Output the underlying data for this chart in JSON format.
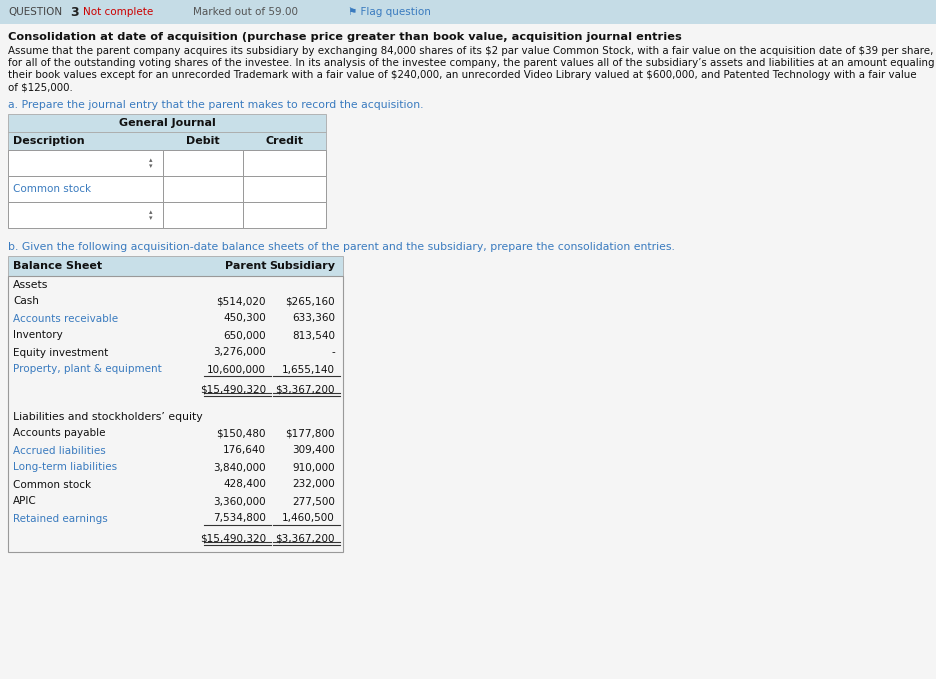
{
  "header_bg": "#cce6ef",
  "page_bg": "#f5f5f5",
  "table_header_bg": "#c8dfe8",
  "question_bar_bg": "#c5dce6",
  "part_a_color": "#3a7bbf",
  "part_b_color": "#3a7bbf",
  "blue_text_color": "#3a7bbf",
  "black_text": "#111111",
  "not_complete_color": "#cc0000",
  "marked_color": "#555555",
  "flag_color": "#3a7bbf",
  "title_text": "Consolidation at date of acquisition (purchase price greater than book value, acquisition journal entries",
  "body_lines": [
    "Assume that the parent company acquires its subsidiary by exchanging 84,000 shares of its $2 par value Common Stock, with a fair value on the acquisition date of $39 per share,",
    "for all of the outstanding voting shares of the investee. In its analysis of the investee company, the parent values all of the subsidiary’s assets and liabilities at an amount equaling",
    "their book values except for an unrecorded Trademark with a fair value of $240,000, an unrecorded Video Library valued at $600,000, and Patented Technology with a fair value",
    "of $125,000."
  ],
  "part_a_text": "a. Prepare the journal entry that the parent makes to record the acquisition.",
  "gj_title": "General Journal",
  "gj_desc": "Description",
  "gj_debit": "Debit",
  "gj_credit": "Credit",
  "common_stock_label": "Common stock",
  "part_b_text": "b. Given the following acquisition-date balance sheets of the parent and the subsidiary, prepare the consolidation entries.",
  "bs_header": [
    "Balance Sheet",
    "Parent",
    "Subsidiary"
  ],
  "assets_label": "Assets",
  "asset_rows": [
    [
      "Cash",
      "$514,020",
      "$265,160"
    ],
    [
      "Accounts receivable",
      "450,300",
      "633,360"
    ],
    [
      "Inventory",
      "650,000",
      "813,540"
    ],
    [
      "Equity investment",
      "3,276,000",
      "-"
    ],
    [
      "Property, plant & equipment",
      "10,600,000",
      "1,655,140"
    ]
  ],
  "asset_total": [
    "$15,490,320",
    "$3,367,200"
  ],
  "liab_label": "Liabilities and stockholders’ equity",
  "liab_rows": [
    [
      "Accounts payable",
      "$150,480",
      "$177,800"
    ],
    [
      "Accrued liabilities",
      "176,640",
      "309,400"
    ],
    [
      "Long-term liabilities",
      "3,840,000",
      "910,000"
    ],
    [
      "Common stock",
      "428,400",
      "232,000"
    ],
    [
      "APIC",
      "3,360,000",
      "277,500"
    ],
    [
      "Retained earnings",
      "7,534,800",
      "1,460,500"
    ]
  ],
  "liab_total": [
    "$15,490,320",
    "$3,367,200"
  ],
  "blue_asset_rows": [
    "Accounts receivable",
    "Property, plant & equipment"
  ],
  "blue_liab_rows": [
    "Accrued liabilities",
    "Long-term liabilities",
    "Retained earnings"
  ]
}
